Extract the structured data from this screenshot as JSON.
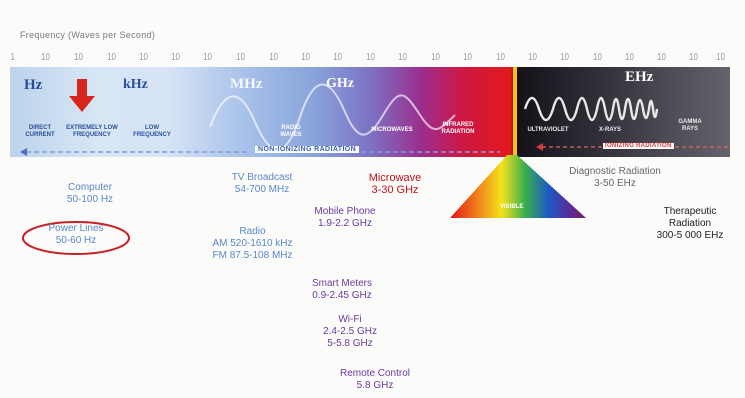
{
  "frequency_title": "Frequency (Waves per Second)",
  "scale_ticks": [
    "1",
    "10",
    "10",
    "10",
    "10",
    "10",
    "10",
    "10",
    "10",
    "10",
    "10",
    "10",
    "10",
    "10",
    "10",
    "10",
    "10",
    "10",
    "10",
    "10",
    "10",
    "10",
    "10"
  ],
  "units": {
    "hz": "Hz",
    "khz": "kHz",
    "mhz": "MHz",
    "ghz": "GHz",
    "ehz": "EHz"
  },
  "categories": {
    "direct_current": "DIRECT CURRENT",
    "elf": "EXTREMELY LOW FREQUENCY",
    "lf": "LOW FREQUENCY",
    "radio_waves": "RADIO WAVES",
    "microwaves": "MICROWAVES",
    "infrared": "INFRARED RADIATION",
    "ultraviolet": "ULTRAVIOLET",
    "xrays": "X-RAYS",
    "gamma": "GAMMA RAYS",
    "visible": "VISIBLE"
  },
  "non_ionizing_label": "NON-IONIZING RADIATION",
  "ionizing_label": "IONIZING RADIATION",
  "items": {
    "computer_name": "Computer",
    "computer_range": "50-100 Hz",
    "power_lines_name": "Power Lines",
    "power_lines_range": "50-60 Hz",
    "tv_name": "TV Broadcast",
    "tv_range": "54-700 MHz",
    "radio_name": "Radio",
    "radio_am": "AM 520-1610 kHz",
    "radio_fm": "FM 87.5-108 MHz",
    "microwave_name": "Microwave",
    "microwave_range": "3-30 GHz",
    "mobile_name": "Mobile Phone",
    "mobile_range": "1.9-2.2 GHz",
    "smart_name": "Smart Meters",
    "smart_range": "0.9-2.45 GHz",
    "wifi_name": "Wi-Fi",
    "wifi_range1": "2.4-2.5 GHz",
    "wifi_range2": "5-5.8 GHz",
    "remote_name": "Remote Control",
    "remote_range": "5.8 GHz",
    "diag_name": "Diagnostic Radiation",
    "diag_range": "3-50 EHz",
    "thera_name1": "Therapeutic",
    "thera_name2": "Radiation",
    "thera_range": "300-5 000 EHz"
  },
  "colors": {
    "power_circle": "#c62026",
    "arrow": "#d9261c",
    "divider": "#f0c419"
  }
}
